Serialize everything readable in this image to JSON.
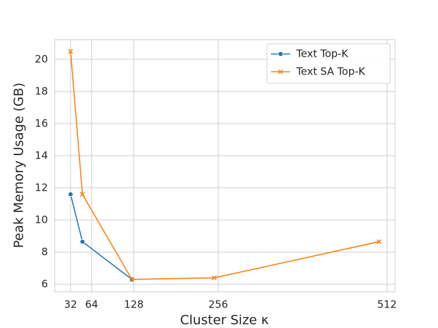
{
  "chart_data": {
    "type": "line",
    "xlabel": "Cluster Size κ",
    "ylabel": "Peak Memory Usage (GB)",
    "x": [
      32,
      50,
      125,
      250,
      500
    ],
    "series": [
      {
        "name": "Text Top-K",
        "color": "#1f77b4",
        "marker": "circle",
        "values": [
          11.6,
          8.65,
          6.3,
          null,
          null
        ]
      },
      {
        "name": "Text SA Top-K",
        "color": "#ff7f0e",
        "marker": "x",
        "values": [
          20.5,
          11.6,
          6.3,
          6.4,
          8.65
        ]
      }
    ],
    "xlim": [
      8,
      524
    ],
    "xticks": [
      32,
      64,
      128,
      256,
      512
    ],
    "ylim": [
      5.53,
      21.23
    ],
    "yticks": [
      6,
      8,
      10,
      12,
      14,
      16,
      18,
      20
    ],
    "grid": true,
    "legend": "upper right"
  }
}
